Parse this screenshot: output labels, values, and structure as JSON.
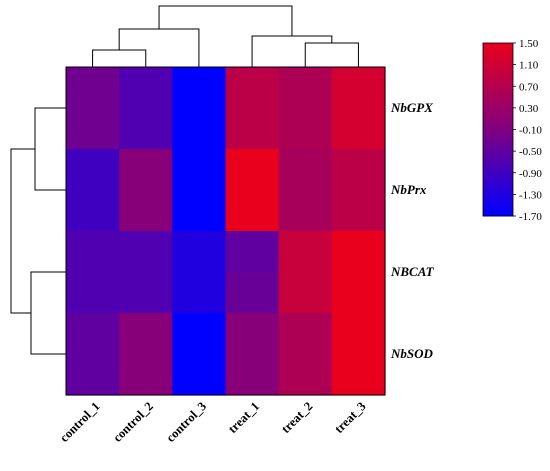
{
  "chart_data": {
    "type": "heatmap",
    "columns": [
      "control_1",
      "control_2",
      "control_3",
      "treat_1",
      "treat_2",
      "treat_3"
    ],
    "rows": [
      "NbGPX",
      "",
      "NbPrx",
      "",
      "NBCAT",
      "",
      "NbSOD",
      ""
    ],
    "row_labels_shown": [
      "NbGPX",
      "NbPrx",
      "NBCAT",
      "NbSOD"
    ],
    "values": [
      [
        -0.3,
        -0.7,
        -1.7,
        0.8,
        0.6,
        1.2
      ],
      [
        -0.3,
        -0.7,
        -1.7,
        0.8,
        0.6,
        1.2
      ],
      [
        -0.9,
        0.0,
        -1.7,
        1.5,
        0.5,
        0.8
      ],
      [
        -0.9,
        0.0,
        -1.7,
        1.5,
        0.5,
        0.8
      ],
      [
        -0.7,
        -0.7,
        -1.3,
        -0.5,
        1.0,
        1.5
      ],
      [
        -0.7,
        -0.7,
        -1.3,
        -0.4,
        1.0,
        1.5
      ],
      [
        -0.5,
        0.0,
        -1.7,
        0.0,
        0.6,
        1.5
      ],
      [
        -0.5,
        0.0,
        -1.7,
        0.0,
        0.6,
        1.5
      ]
    ],
    "colorbar": {
      "ticks": [
        "1.50",
        "1.10",
        "0.70",
        "0.30",
        "-0.10",
        "-0.50",
        "-0.90",
        "-1.30",
        "-1.70"
      ],
      "range": [
        -1.7,
        1.5
      ],
      "colors": {
        "low": "#0000ff",
        "mid": "#800080",
        "high": "#e8001c"
      }
    },
    "column_dendrogram": true,
    "row_dendrogram": true
  }
}
